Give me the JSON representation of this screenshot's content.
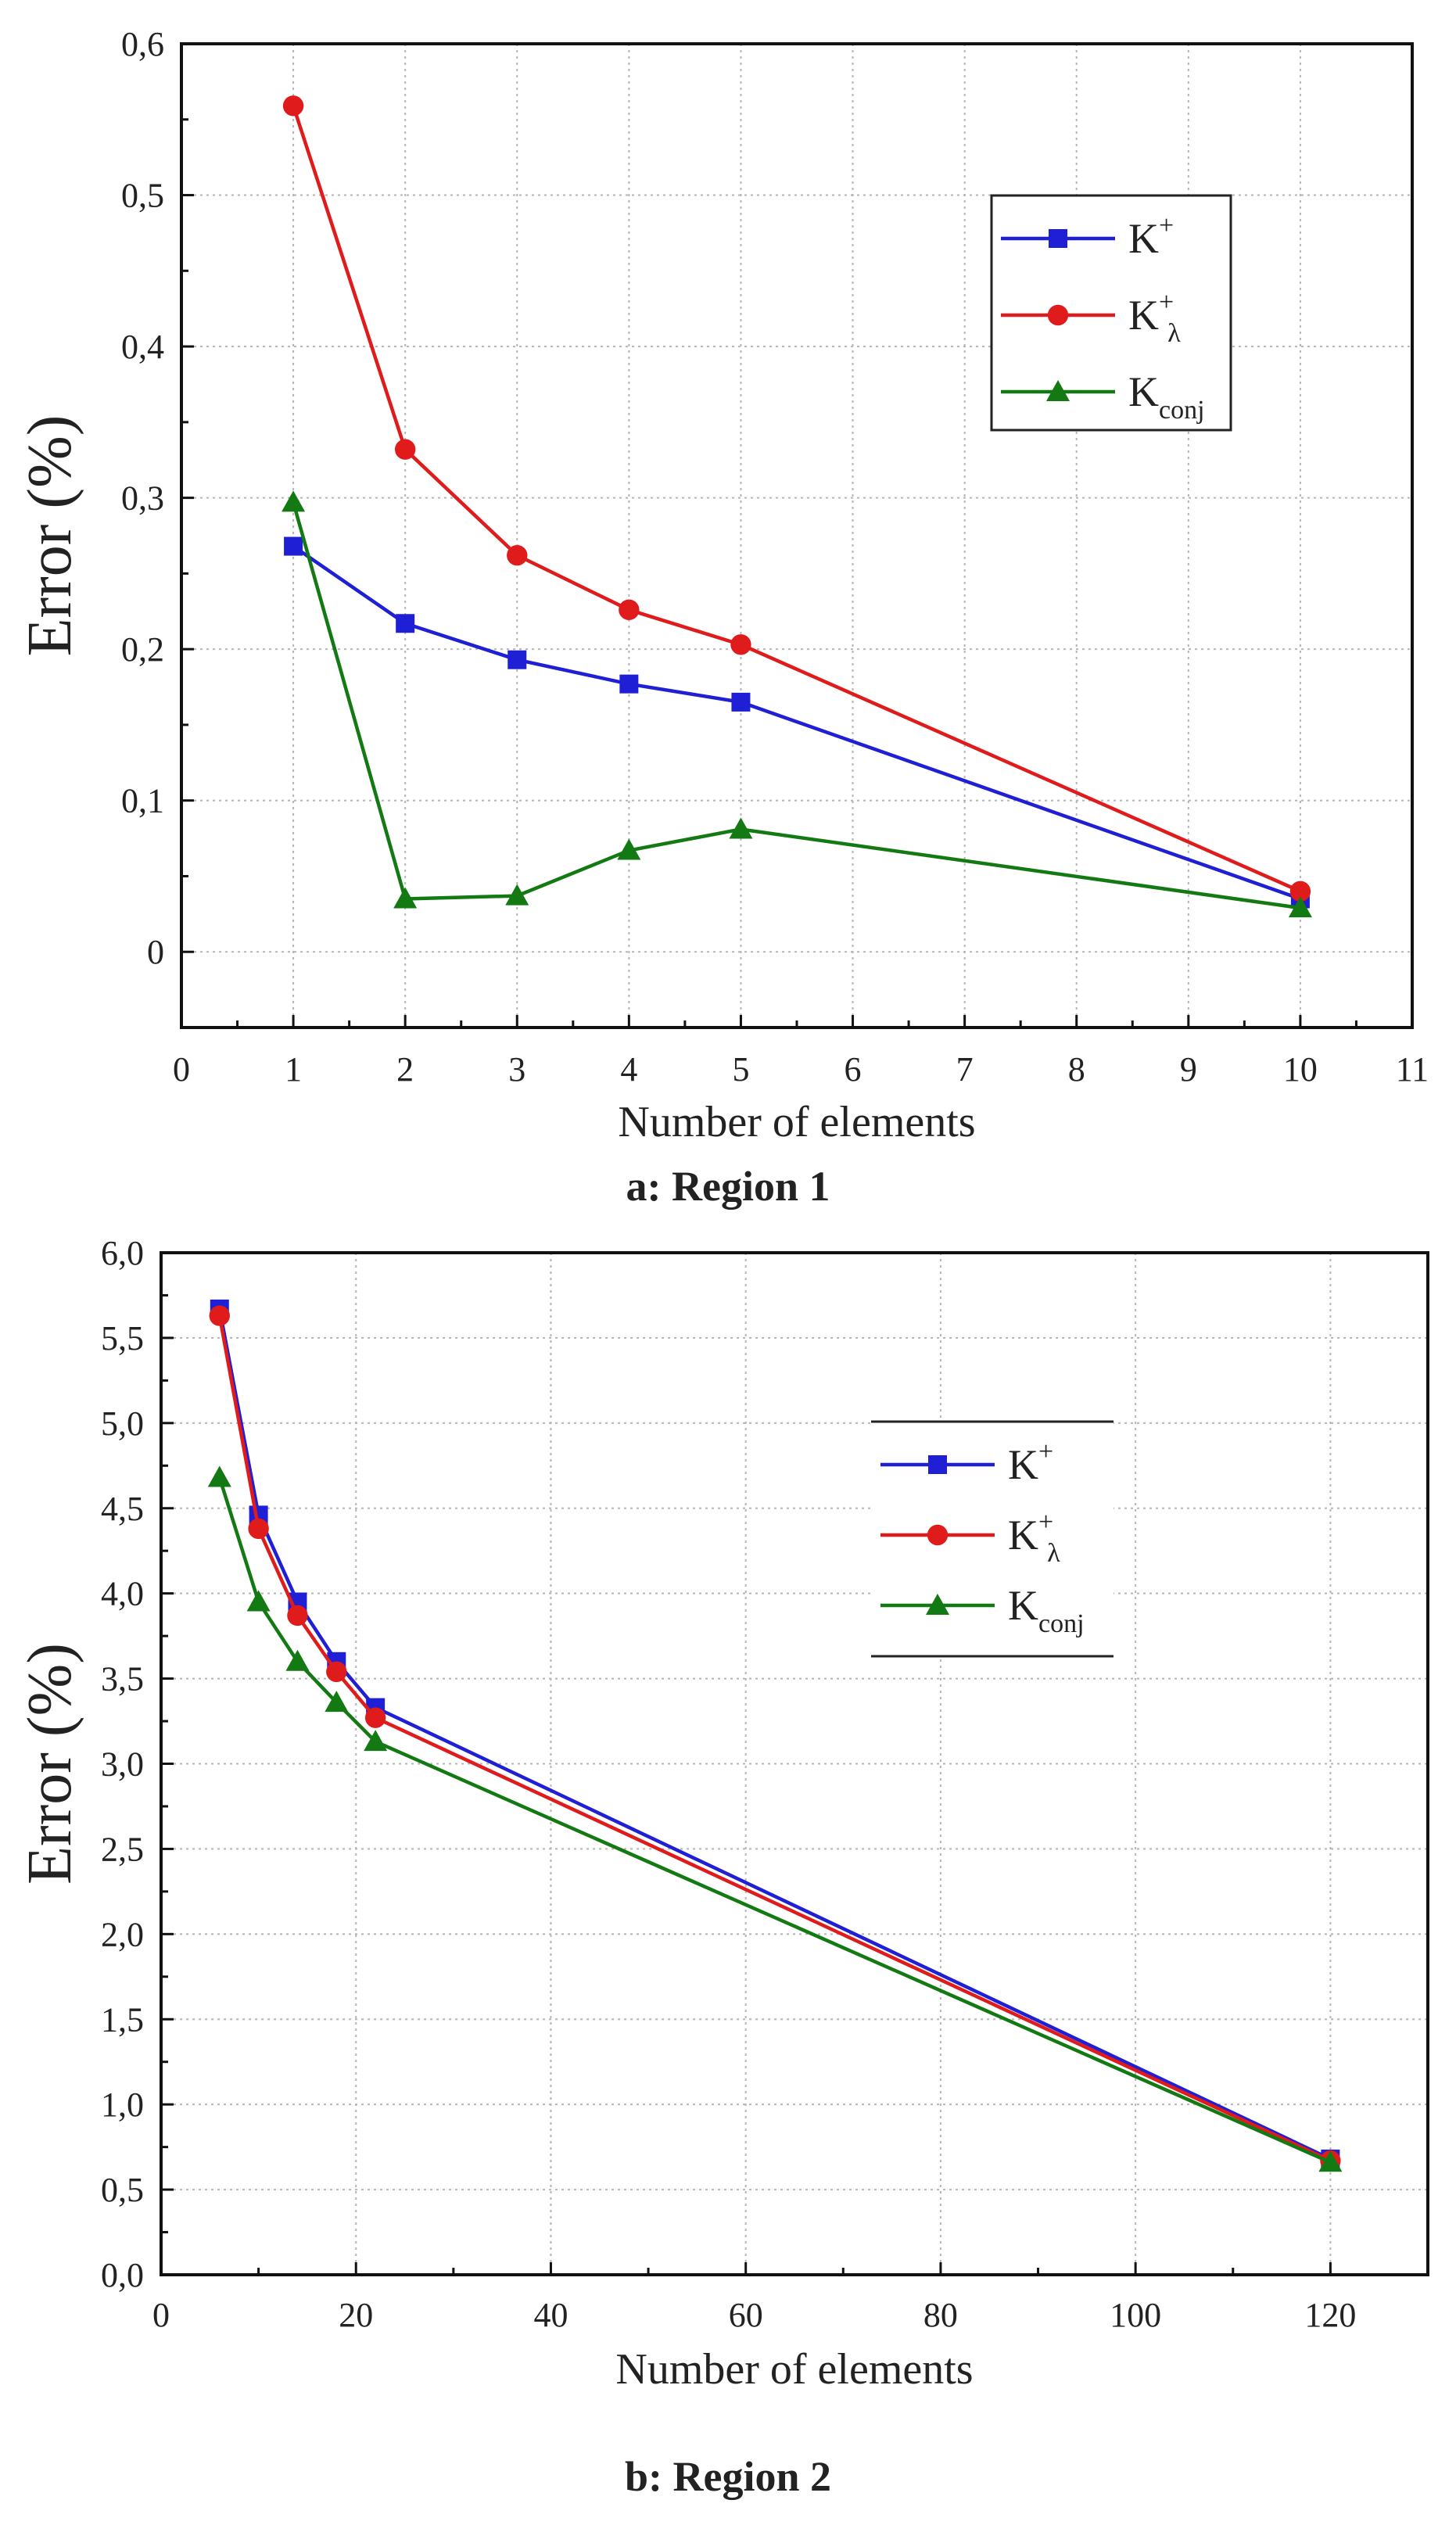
{
  "chart_data": [
    {
      "type": "line",
      "title": "",
      "caption": "a: Region 1",
      "xlabel": "Number of elements",
      "ylabel": "Error (%)",
      "xlim": [
        0,
        11
      ],
      "ylim": [
        -0.05,
        0.6
      ],
      "x_ticks": [
        0,
        1,
        2,
        3,
        4,
        5,
        6,
        7,
        8,
        9,
        10,
        11
      ],
      "x_tick_labels": [
        "0",
        "1",
        "2",
        "3",
        "4",
        "5",
        "6",
        "7",
        "8",
        "9",
        "10",
        "11"
      ],
      "y_ticks": [
        0,
        0.1,
        0.2,
        0.3,
        0.4,
        0.5,
        0.6
      ],
      "y_tick_labels": [
        "0",
        "0,1",
        "0,2",
        "0,3",
        "0,4",
        "0,5",
        "0,6"
      ],
      "grid": true,
      "legend_position": "top-right",
      "series": [
        {
          "name": "K+",
          "label_main": "K",
          "label_sup": "+",
          "label_sub": "",
          "color": "#1f1fd6",
          "marker": "square",
          "x": [
            1,
            2,
            3,
            4,
            5,
            10
          ],
          "values": [
            0.268,
            0.217,
            0.193,
            0.177,
            0.165,
            0.035
          ]
        },
        {
          "name": "K+λ",
          "label_main": "K",
          "label_sup": "+",
          "label_sub": "λ",
          "color": "#e01b1b",
          "marker": "circle",
          "x": [
            1,
            2,
            3,
            4,
            5,
            10
          ],
          "values": [
            0.559,
            0.332,
            0.262,
            0.226,
            0.203,
            0.04
          ]
        },
        {
          "name": "Kconj",
          "label_main": "K",
          "label_sup": "",
          "label_sub": "conj",
          "color": "#137a13",
          "marker": "triangle",
          "x": [
            1,
            2,
            3,
            4,
            5,
            10
          ],
          "values": [
            0.297,
            0.035,
            0.037,
            0.067,
            0.081,
            0.029
          ]
        }
      ]
    },
    {
      "type": "line",
      "title": "",
      "caption": "b: Region 2",
      "xlabel": "Number of elements",
      "ylabel": "Error (%)",
      "xlim": [
        0,
        130
      ],
      "ylim": [
        0,
        6
      ],
      "x_ticks": [
        0,
        20,
        40,
        60,
        80,
        100,
        120
      ],
      "x_tick_labels": [
        "0",
        "20",
        "40",
        "60",
        "80",
        "100",
        "120"
      ],
      "y_ticks": [
        0,
        0.5,
        1,
        1.5,
        2,
        2.5,
        3,
        3.5,
        4,
        4.5,
        5,
        5.5,
        6
      ],
      "y_tick_labels": [
        "0,0",
        "0,5",
        "1,0",
        "1,5",
        "2,0",
        "2,5",
        "3,0",
        "3,5",
        "4,0",
        "4,5",
        "5,0",
        "5,5",
        "6,0"
      ],
      "grid": true,
      "legend_position": "upper-right",
      "series": [
        {
          "name": "K+",
          "label_main": "K",
          "label_sup": "+",
          "label_sub": "",
          "color": "#1f1fd6",
          "marker": "square",
          "x": [
            6,
            10,
            14,
            18,
            22,
            120
          ],
          "values": [
            5.67,
            4.46,
            3.95,
            3.6,
            3.33,
            0.68
          ]
        },
        {
          "name": "K+λ",
          "label_main": "K",
          "label_sup": "+",
          "label_sub": "λ",
          "color": "#e01b1b",
          "marker": "circle",
          "x": [
            6,
            10,
            14,
            18,
            22,
            120
          ],
          "values": [
            5.63,
            4.38,
            3.87,
            3.54,
            3.27,
            0.67
          ]
        },
        {
          "name": "Kconj",
          "label_main": "K",
          "label_sup": "",
          "label_sub": "conj",
          "color": "#137a13",
          "marker": "triangle",
          "x": [
            6,
            10,
            14,
            18,
            22,
            120
          ],
          "values": [
            4.68,
            3.95,
            3.6,
            3.36,
            3.13,
            0.66
          ]
        }
      ]
    }
  ]
}
